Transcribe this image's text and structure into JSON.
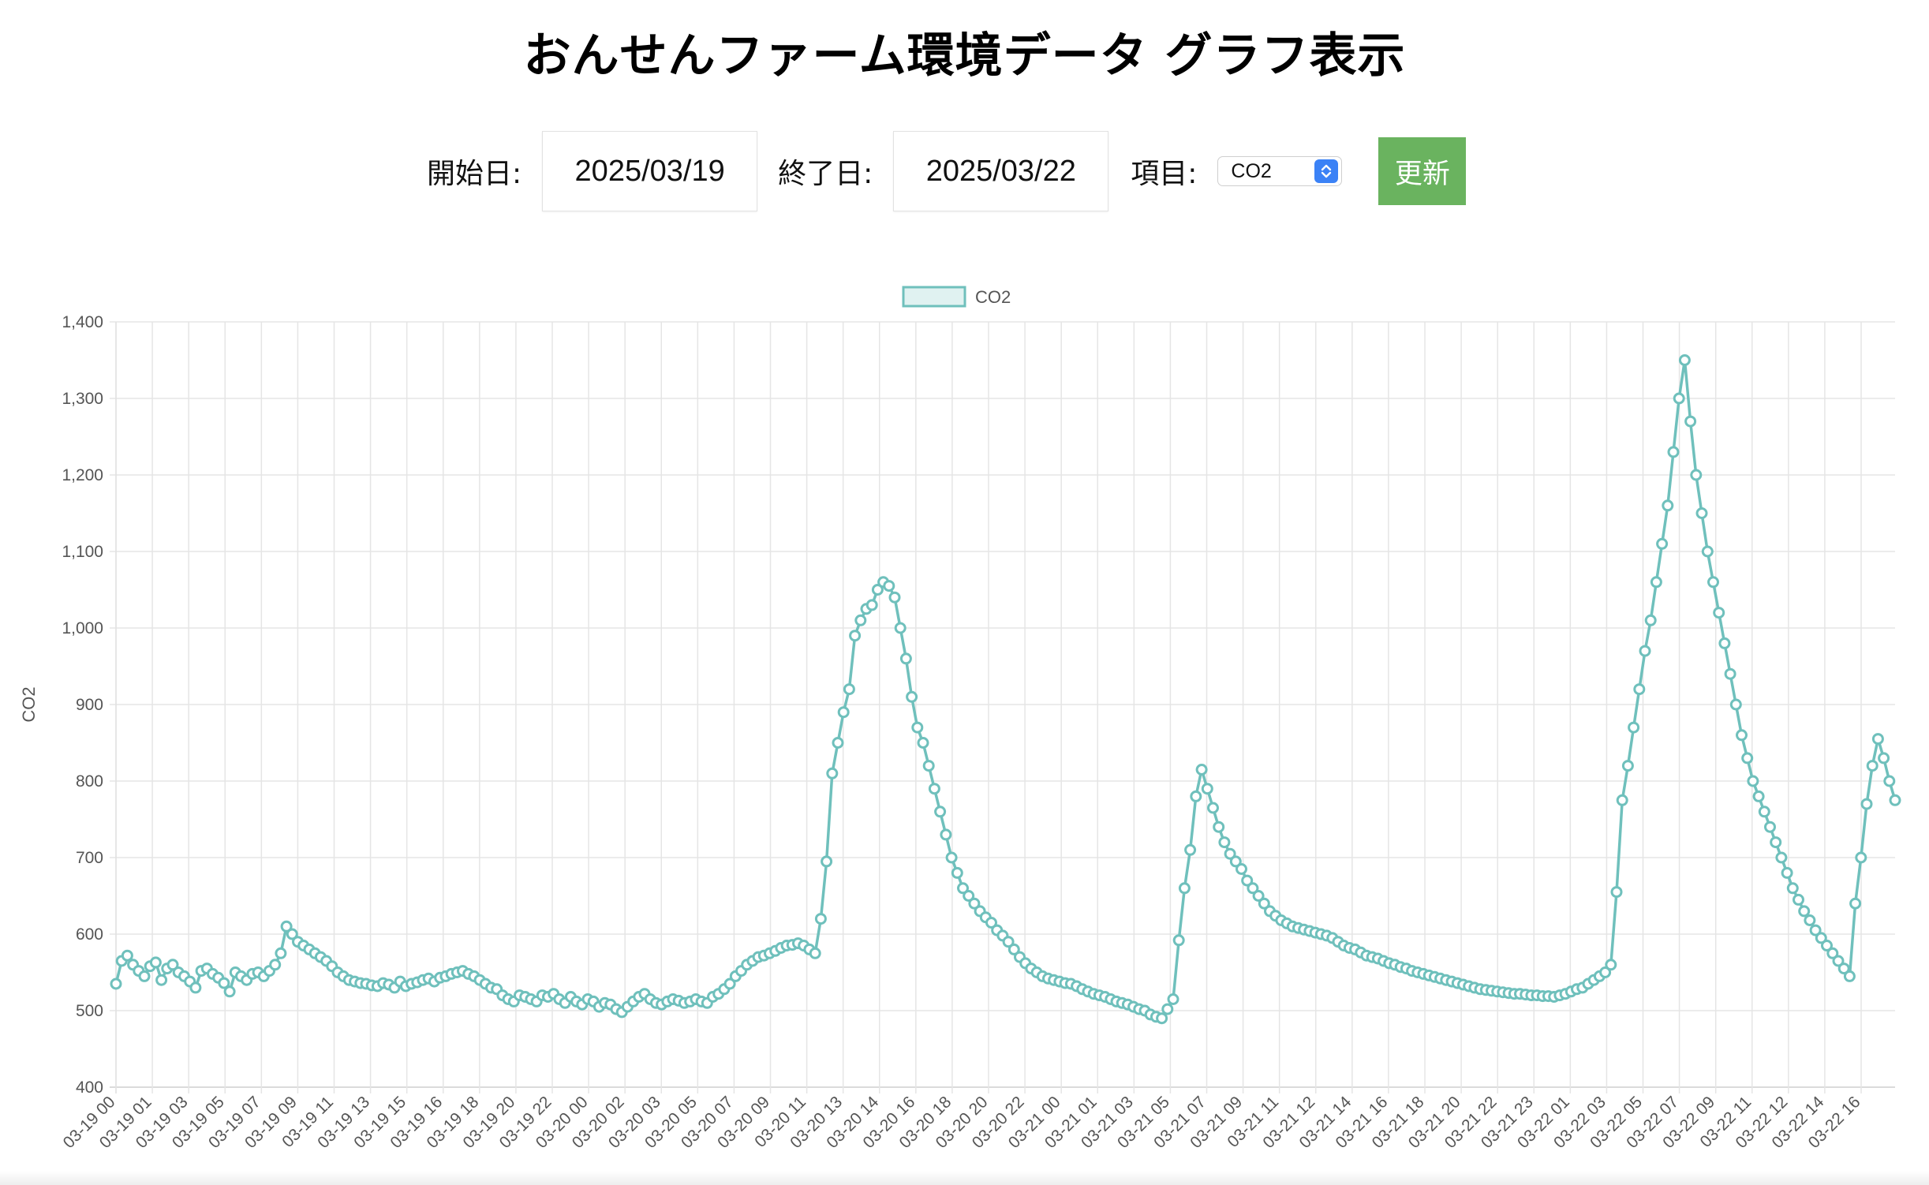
{
  "page": {
    "title": "おんせんファーム環境データ グラフ表示"
  },
  "controls": {
    "start_label": "開始日:",
    "start_value": "2025/03/19",
    "end_label": "終了日:",
    "end_value": "2025/03/22",
    "item_label": "項目:",
    "item_selected": "CO2",
    "update_label": "更新"
  },
  "colors": {
    "line": "#6fc0bc",
    "legend_fill": "#e0f2f1",
    "update_button": "#6ab35f",
    "grid": "#e5e5e5",
    "select_arrow": "#3b82f6"
  },
  "icons": {
    "select_arrow": "chevron-up-down-icon"
  },
  "chart_data": {
    "type": "line",
    "ylabel": "CO2",
    "xlabel": "",
    "ylim": [
      400,
      1400
    ],
    "y_ticks": [
      {
        "value": 400,
        "label": "400"
      },
      {
        "value": 500,
        "label": "500"
      },
      {
        "value": 600,
        "label": "600"
      },
      {
        "value": 700,
        "label": "700"
      },
      {
        "value": 800,
        "label": "800"
      },
      {
        "value": 900,
        "label": "900"
      },
      {
        "value": 1000,
        "label": "1,000"
      },
      {
        "value": 1100,
        "label": "1,100"
      },
      {
        "value": 1200,
        "label": "1,200"
      },
      {
        "value": 1300,
        "label": "1,300"
      },
      {
        "value": 1400,
        "label": "1,400"
      }
    ],
    "legend": {
      "position": "top",
      "entries": [
        "CO2"
      ]
    },
    "grid": true,
    "x_tick_labels": [
      "03-19 00",
      "03-19 01",
      "03-19 03",
      "03-19 05",
      "03-19 07",
      "03-19 09",
      "03-19 11",
      "03-19 13",
      "03-19 15",
      "03-19 16",
      "03-19 18",
      "03-19 20",
      "03-19 22",
      "03-20 00",
      "03-20 02",
      "03-20 03",
      "03-20 05",
      "03-20 07",
      "03-20 09",
      "03-20 11",
      "03-20 13",
      "03-20 14",
      "03-20 16",
      "03-20 18",
      "03-20 20",
      "03-20 22",
      "03-21 00",
      "03-21 01",
      "03-21 03",
      "03-21 05",
      "03-21 07",
      "03-21 09",
      "03-21 11",
      "03-21 12",
      "03-21 14",
      "03-21 16",
      "03-21 18",
      "03-21 20",
      "03-21 22",
      "03-21 23",
      "03-22 01",
      "03-22 03",
      "03-22 05",
      "03-22 07",
      "03-22 09",
      "03-22 11",
      "03-22 12",
      "03-22 14",
      "03-22 16"
    ],
    "series": [
      {
        "name": "CO2",
        "values": [
          535,
          565,
          572,
          560,
          552,
          545,
          558,
          563,
          540,
          555,
          560,
          550,
          545,
          538,
          530,
          552,
          555,
          548,
          543,
          536,
          525,
          550,
          545,
          540,
          548,
          550,
          545,
          552,
          560,
          575,
          610,
          600,
          590,
          585,
          580,
          575,
          570,
          565,
          558,
          550,
          545,
          540,
          538,
          536,
          535,
          533,
          532,
          536,
          534,
          530,
          538,
          532,
          535,
          537,
          540,
          542,
          538,
          543,
          545,
          548,
          550,
          552,
          548,
          545,
          540,
          535,
          530,
          528,
          520,
          515,
          512,
          520,
          518,
          515,
          512,
          520,
          518,
          522,
          515,
          510,
          518,
          512,
          508,
          515,
          512,
          505,
          510,
          508,
          502,
          498,
          505,
          512,
          518,
          522,
          515,
          510,
          508,
          512,
          515,
          513,
          510,
          512,
          515,
          512,
          510,
          518,
          522,
          528,
          535,
          545,
          552,
          560,
          565,
          570,
          572,
          575,
          578,
          582,
          585,
          586,
          588,
          585,
          580,
          575,
          620,
          695,
          810,
          850,
          890,
          920,
          990,
          1010,
          1025,
          1030,
          1050,
          1060,
          1055,
          1040,
          1000,
          960,
          910,
          870,
          850,
          820,
          790,
          760,
          730,
          700,
          680,
          660,
          650,
          640,
          630,
          622,
          615,
          605,
          598,
          590,
          580,
          570,
          562,
          555,
          550,
          545,
          542,
          540,
          538,
          536,
          535,
          532,
          528,
          525,
          522,
          520,
          518,
          515,
          512,
          510,
          508,
          505,
          502,
          500,
          495,
          492,
          490,
          502,
          515,
          592,
          660,
          710,
          780,
          815,
          790,
          765,
          740,
          720,
          705,
          695,
          685,
          670,
          660,
          650,
          640,
          630,
          624,
          618,
          614,
          610,
          608,
          606,
          604,
          602,
          600,
          598,
          595,
          590,
          585,
          582,
          580,
          576,
          572,
          570,
          568,
          565,
          562,
          560,
          557,
          555,
          552,
          550,
          548,
          546,
          544,
          542,
          540,
          538,
          536,
          534,
          532,
          530,
          528,
          527,
          526,
          525,
          524,
          523,
          522,
          522,
          521,
          520,
          520,
          519,
          519,
          518,
          520,
          522,
          525,
          528,
          530,
          535,
          540,
          545,
          550,
          560,
          655,
          775,
          820,
          870,
          920,
          970,
          1010,
          1060,
          1110,
          1160,
          1230,
          1300,
          1350,
          1270,
          1200,
          1150,
          1100,
          1060,
          1020,
          980,
          940,
          900,
          860,
          830,
          800,
          780,
          760,
          740,
          720,
          700,
          680,
          660,
          645,
          630,
          618,
          605,
          595,
          585,
          575,
          565,
          555,
          545,
          640,
          700,
          770,
          820,
          855,
          830,
          800,
          775
        ]
      }
    ]
  }
}
